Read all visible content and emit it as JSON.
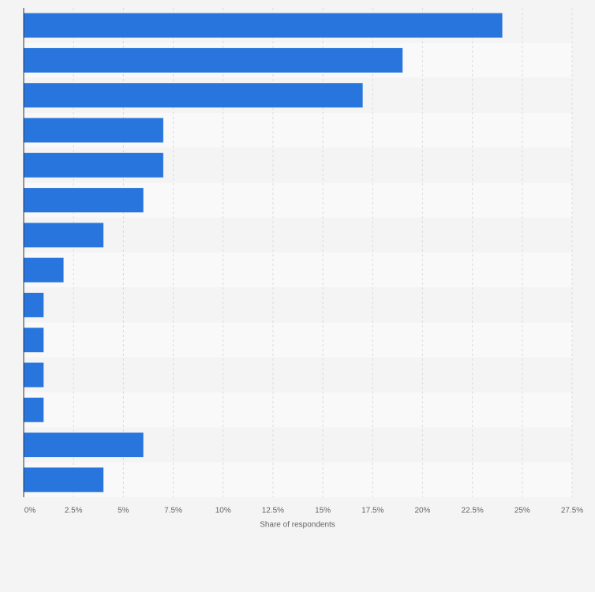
{
  "chart_data": {
    "type": "barh",
    "x_label": "Share of respondents",
    "categories": [
      null,
      null,
      null,
      null,
      null,
      null,
      null,
      null,
      null,
      null,
      null,
      null,
      null,
      null
    ],
    "values": [
      24,
      19,
      17,
      7,
      7,
      6,
      4,
      2,
      1,
      1,
      1,
      1,
      6,
      4
    ],
    "color": "#2876dd",
    "xlim": [
      0,
      27.5
    ],
    "xticks": [
      {
        "value": 0,
        "label": "0%"
      },
      {
        "value": 2.5,
        "label": "2.5%"
      },
      {
        "value": 5,
        "label": "5%"
      },
      {
        "value": 7.5,
        "label": "7.5%"
      },
      {
        "value": 10,
        "label": "10%"
      },
      {
        "value": 12.5,
        "label": "12.5%"
      },
      {
        "value": 15,
        "label": "15%"
      },
      {
        "value": 17.5,
        "label": "17.5%"
      },
      {
        "value": 20,
        "label": "20%"
      },
      {
        "value": 22.5,
        "label": "22.5%"
      },
      {
        "value": 25,
        "label": "25%"
      },
      {
        "value": 27.5,
        "label": "27.5%"
      }
    ],
    "grid": true
  }
}
